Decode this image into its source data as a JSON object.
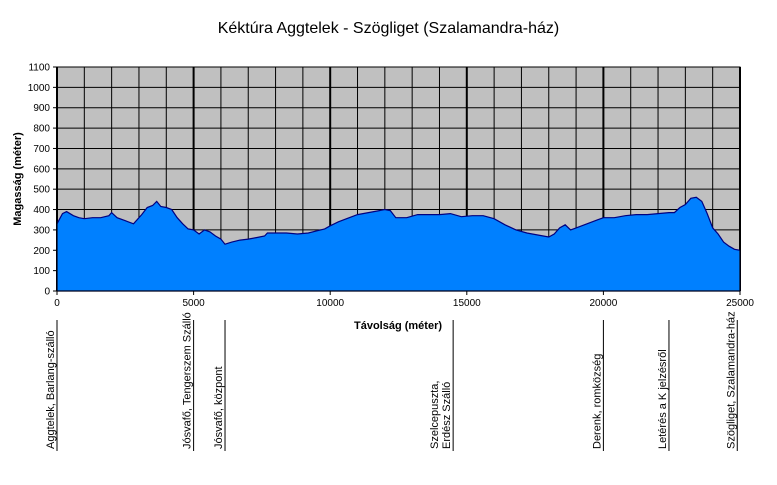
{
  "chart_data": {
    "type": "area",
    "title": "Kéktúra Aggtelek - Szögliget (Szalamandra-ház)",
    "xlabel": "Távolság (méter)",
    "ylabel": "Magasság (méter)",
    "xlim": [
      0,
      25000
    ],
    "ylim": [
      0,
      1100
    ],
    "xticks": [
      "0",
      "5000",
      "10000",
      "15000",
      "20000",
      "25000"
    ],
    "yticks": [
      "0",
      "100",
      "200",
      "300",
      "400",
      "500",
      "600",
      "700",
      "800",
      "900",
      "1000",
      "1100"
    ],
    "grid": true,
    "colors": {
      "plot_bg": "#c0c0c0",
      "fill": "#0080ff",
      "line": "#000080",
      "grid": "#000000"
    },
    "series": [
      {
        "x": [
          0,
          200,
          350,
          600,
          800,
          1000,
          1300,
          1600,
          1900,
          2000,
          2200,
          2500,
          2800,
          3100,
          3300,
          3500,
          3650,
          3800,
          4000,
          4200,
          4400,
          4600,
          4800,
          5000,
          5200,
          5400,
          5600,
          5800,
          6000,
          6150,
          6400,
          6700,
          7000,
          7300,
          7600,
          7700,
          8000,
          8400,
          8800,
          9200,
          9500,
          9800,
          10000,
          10300,
          10600,
          11000,
          11400,
          11800,
          12000,
          12200,
          12400,
          12800,
          13200,
          13600,
          14000,
          14400,
          14800,
          15200,
          15600,
          16000,
          16400,
          16800,
          17200,
          17600,
          18000,
          18200,
          18400,
          18600,
          18800,
          19000,
          19400,
          19800,
          20000,
          20400,
          20800,
          21200,
          21600,
          22000,
          22400,
          22600,
          22800,
          23000,
          23200,
          23400,
          23600,
          23800,
          24000,
          24200,
          24400,
          24600,
          24800,
          25000
        ],
        "y": [
          330,
          380,
          390,
          370,
          360,
          355,
          360,
          360,
          370,
          385,
          360,
          345,
          330,
          375,
          410,
          420,
          440,
          415,
          410,
          400,
          360,
          330,
          305,
          300,
          280,
          300,
          290,
          270,
          255,
          230,
          240,
          250,
          255,
          262,
          270,
          285,
          285,
          285,
          280,
          285,
          295,
          305,
          320,
          340,
          355,
          375,
          385,
          395,
          400,
          395,
          360,
          360,
          375,
          375,
          375,
          380,
          365,
          370,
          370,
          355,
          325,
          300,
          285,
          275,
          265,
          280,
          310,
          325,
          300,
          310,
          330,
          350,
          360,
          360,
          370,
          375,
          375,
          380,
          385,
          385,
          410,
          425,
          455,
          460,
          440,
          380,
          310,
          280,
          240,
          220,
          205,
          200
        ]
      }
    ],
    "annotations": [
      {
        "x": 0,
        "lines": [
          "Aggtelek, Barlang-szálló"
        ]
      },
      {
        "x": 5000,
        "lines": [
          "Jósvafő, Tengerszem Szálló"
        ]
      },
      {
        "x": 6150,
        "lines": [
          "Jósvafő, központ"
        ]
      },
      {
        "x": 14500,
        "lines": [
          "Szelcepuszta,",
          "Erdész Szálló"
        ]
      },
      {
        "x": 20000,
        "lines": [
          "Derenk, romközség"
        ]
      },
      {
        "x": 22400,
        "lines": [
          "Letérés a K jelzésről"
        ]
      },
      {
        "x": 24900,
        "lines": [
          "Szögliget, Szalamandra-ház"
        ]
      }
    ]
  }
}
